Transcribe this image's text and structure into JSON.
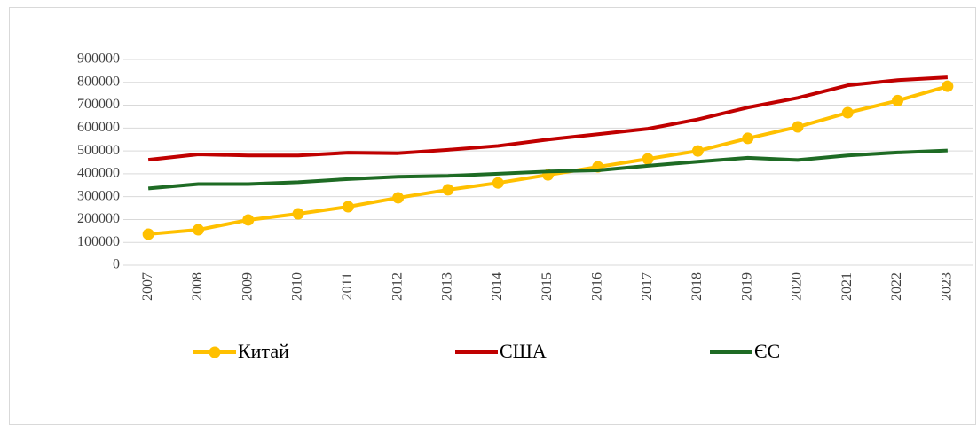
{
  "chart_data": {
    "type": "line",
    "categories": [
      "2007",
      "2008",
      "2009",
      "2010",
      "2011",
      "2012",
      "2013",
      "2014",
      "2015",
      "2016",
      "2017",
      "2018",
      "2019",
      "2020",
      "2021",
      "2022",
      "2023"
    ],
    "series": [
      {
        "name": "Китай",
        "color": "#ffc000",
        "marker": true,
        "values": [
          136000,
          155000,
          198000,
          225000,
          256000,
          295000,
          330000,
          360000,
          395000,
          430000,
          465000,
          500000,
          555000,
          605000,
          667000,
          720000,
          783000
        ]
      },
      {
        "name": "США",
        "color": "#c00000",
        "marker": false,
        "values": [
          461000,
          485000,
          480000,
          480000,
          492000,
          490000,
          505000,
          522000,
          550000,
          573000,
          597000,
          638000,
          690000,
          732000,
          787000,
          810000,
          822000
        ]
      },
      {
        "name": "ЄС",
        "color": "#1e6b24",
        "marker": false,
        "values": [
          336000,
          355000,
          355000,
          363000,
          377000,
          387000,
          391000,
          400000,
          410000,
          415000,
          435000,
          453000,
          470000,
          460000,
          480000,
          493000,
          502000
        ]
      }
    ],
    "ylim": [
      0,
      900000
    ],
    "yticks": [
      0,
      100000,
      200000,
      300000,
      400000,
      500000,
      600000,
      700000,
      800000,
      900000
    ],
    "grid": true,
    "legend": "bottom"
  }
}
